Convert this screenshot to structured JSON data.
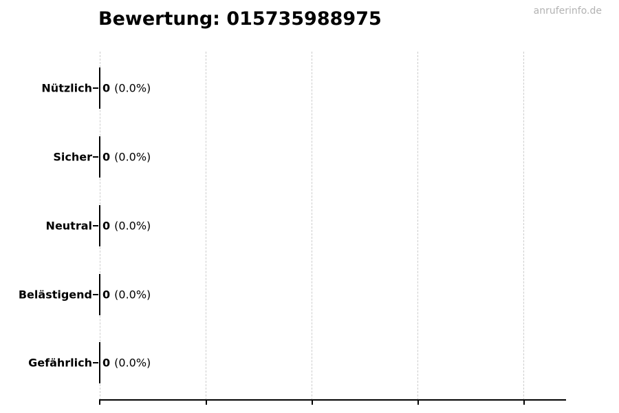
{
  "title": "Bewertung: 015735988975",
  "watermark": "anruferinfo.de",
  "colors": {
    "background": "#ffffff",
    "text": "#000000",
    "axis": "#000000",
    "grid": "#cccccc",
    "bar_edge": "#000000",
    "watermark": "#b2b2b2"
  },
  "chart_data": {
    "type": "bar",
    "orientation": "horizontal",
    "title": "Bewertung: 015735988975",
    "categories": [
      "Nützlich",
      "Sicher",
      "Neutral",
      "Belästigend",
      "Gefährlich"
    ],
    "values": [
      0,
      0,
      0,
      0,
      0
    ],
    "percent_labels": [
      "(0.0%)",
      "(0.0%)",
      "(0.0%)",
      "(0.0%)",
      "(0.0%)"
    ],
    "grid": true,
    "gridline_count": 5,
    "x_tick_labels": [],
    "legend": false
  }
}
